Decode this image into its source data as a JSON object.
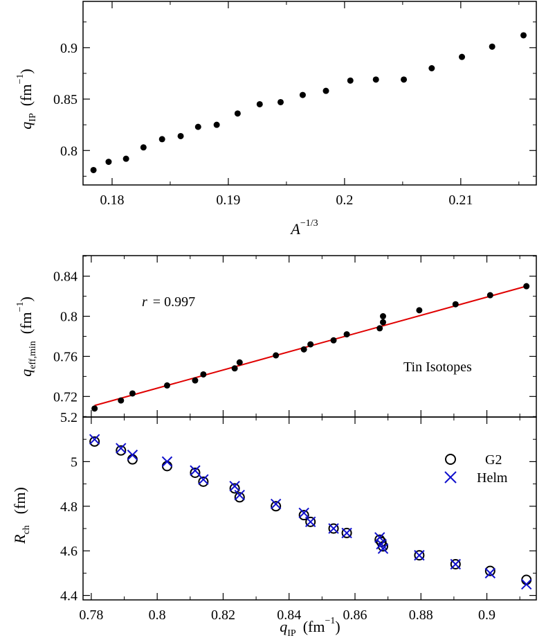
{
  "colors": {
    "axis": "#000000",
    "fit_line": "#e00000",
    "helm": "#1010cc",
    "g2": "#000000",
    "points": "#000000"
  },
  "chart_data": [
    {
      "type": "scatter",
      "xlabel": {
        "main": "A",
        "sup": "−1/3"
      },
      "ylabel": {
        "main": "q",
        "sub": "IP",
        "unit_pre": "(fm",
        "unit_sup": "−1",
        "unit_post": ")"
      },
      "xlim": [
        0.1775,
        0.2165
      ],
      "ylim": [
        0.7665,
        0.945
      ],
      "xticks": [
        0.18,
        0.19,
        0.2,
        0.21
      ],
      "xtick_labels": [
        "0.18",
        "0.19",
        "0.2",
        "0.21"
      ],
      "yticks": [
        0.8,
        0.85,
        0.9
      ],
      "ytick_labels": [
        "0.8",
        "0.85",
        "0.9"
      ],
      "x": [
        0.1784,
        0.1797,
        0.1812,
        0.1827,
        0.1843,
        0.1859,
        0.1874,
        0.189,
        0.1908,
        0.1927,
        0.1945,
        0.1964,
        0.1984,
        0.2005,
        0.2027,
        0.2051,
        0.2075,
        0.2101,
        0.2127,
        0.2154
      ],
      "y": [
        0.781,
        0.789,
        0.792,
        0.803,
        0.811,
        0.814,
        0.823,
        0.825,
        0.836,
        0.845,
        0.847,
        0.854,
        0.858,
        0.868,
        0.869,
        0.869,
        0.88,
        0.891,
        0.901,
        0.912
      ]
    },
    {
      "type": "scatter",
      "xlabel": "",
      "ylabel": {
        "main": "q",
        "sub": "eff,min",
        "unit_pre": "(fm",
        "unit_sup": "−1",
        "unit_post": ")"
      },
      "xlim": [
        0.7775,
        0.915
      ],
      "ylim": [
        0.6995,
        0.8605
      ],
      "yticks": [
        0.72,
        0.76,
        0.8,
        0.84
      ],
      "ytick_labels": [
        "0.72",
        "0.76",
        "0.8",
        "0.84"
      ],
      "annotation_r_label": "r",
      "annotation_r_value": "= 0.997",
      "annotation_title": "Tin Isotopes",
      "fit": {
        "x": [
          0.781,
          0.912
        ],
        "y": [
          0.711,
          0.83
        ]
      },
      "x": [
        0.781,
        0.789,
        0.7925,
        0.803,
        0.8115,
        0.814,
        0.8235,
        0.825,
        0.836,
        0.8445,
        0.8465,
        0.8535,
        0.8575,
        0.8675,
        0.8685,
        0.8685,
        0.8795,
        0.8905,
        0.901,
        0.912
      ],
      "y": [
        0.708,
        0.716,
        0.723,
        0.731,
        0.736,
        0.742,
        0.748,
        0.754,
        0.761,
        0.767,
        0.772,
        0.776,
        0.782,
        0.788,
        0.794,
        0.8,
        0.806,
        0.812,
        0.821,
        0.83
      ]
    },
    {
      "type": "scatter",
      "xlabel": {
        "main": "q",
        "sub": "IP",
        "unit_pre": "(fm",
        "unit_sup": "−1",
        "unit_post": ")"
      },
      "ylabel": {
        "main": "R",
        "sub": "ch",
        "unit": "(fm)"
      },
      "xlim": [
        0.7775,
        0.915
      ],
      "ylim": [
        4.38,
        5.2
      ],
      "xticks": [
        0.78,
        0.8,
        0.82,
        0.84,
        0.86,
        0.88,
        0.9
      ],
      "xtick_labels": [
        "0.78",
        "0.8",
        "0.82",
        "0.84",
        "0.86",
        "0.88",
        "0.9"
      ],
      "yticks": [
        4.4,
        4.6,
        4.8,
        5.0,
        5.2
      ],
      "ytick_labels": [
        "4.4",
        "4.6",
        "4.8",
        "5",
        "5.2"
      ],
      "legend_position": "top-right",
      "series": [
        {
          "name": "G2",
          "marker": "circle",
          "x": [
            0.781,
            0.789,
            0.7925,
            0.803,
            0.8115,
            0.814,
            0.8235,
            0.825,
            0.836,
            0.8445,
            0.8465,
            0.8535,
            0.8575,
            0.8675,
            0.868,
            0.8685,
            0.8795,
            0.8905,
            0.901,
            0.912
          ],
          "y": [
            5.09,
            5.05,
            5.01,
            4.98,
            4.95,
            4.91,
            4.88,
            4.84,
            4.8,
            4.76,
            4.73,
            4.7,
            4.68,
            4.65,
            4.64,
            4.62,
            4.58,
            4.54,
            4.51,
            4.47
          ]
        },
        {
          "name": "Helm",
          "marker": "cross",
          "x": [
            0.781,
            0.789,
            0.7925,
            0.803,
            0.8115,
            0.814,
            0.8235,
            0.825,
            0.836,
            0.8445,
            0.8465,
            0.8535,
            0.8575,
            0.8675,
            0.868,
            0.8685,
            0.8795,
            0.8905,
            0.901,
            0.912
          ],
          "y": [
            5.1,
            5.06,
            5.03,
            5.0,
            4.96,
            4.92,
            4.89,
            4.85,
            4.81,
            4.77,
            4.73,
            4.7,
            4.68,
            4.66,
            4.63,
            4.61,
            4.58,
            4.54,
            4.5,
            4.45
          ]
        }
      ]
    }
  ]
}
